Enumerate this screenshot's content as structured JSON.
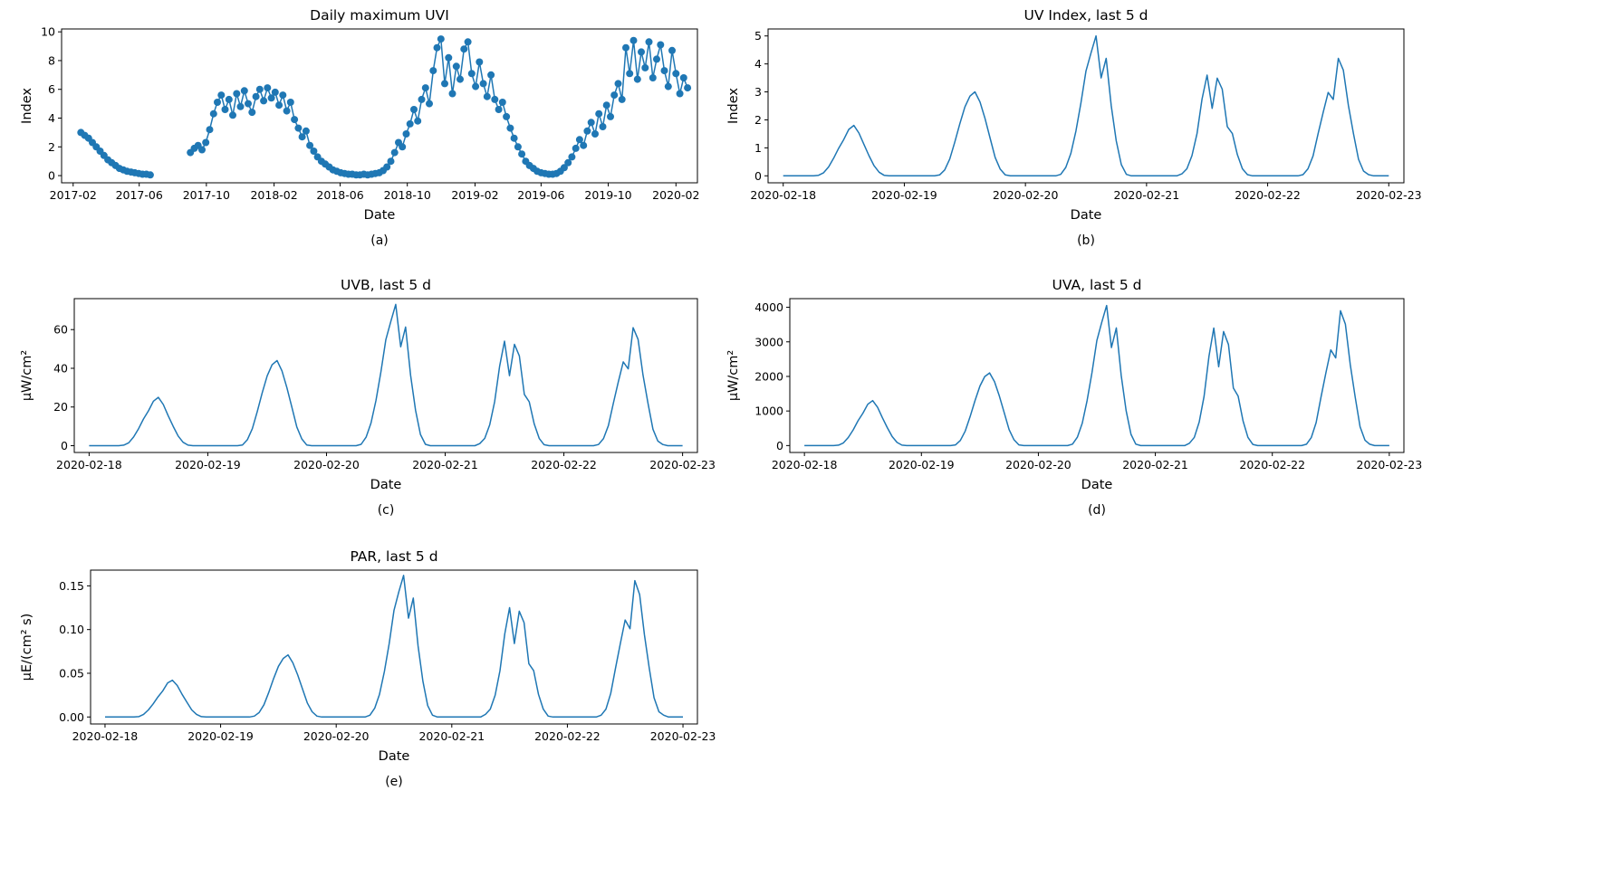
{
  "style": {
    "line_color": "#1f77b4",
    "axis_color": "#000000",
    "text_color": "#000000",
    "background": "#ffffff"
  },
  "chart_data": [
    {
      "id": "a",
      "type": "scatter",
      "title": "Daily maximum UVI",
      "xlabel": "Date",
      "ylabel": "Index",
      "caption": "(a)",
      "x_unit": "days since 2017-01-01",
      "xlim": [
        10,
        1165
      ],
      "ylim": [
        -0.5,
        10.2
      ],
      "grid": false,
      "legend": "none",
      "marker": true,
      "xticks": [
        {
          "v": 31,
          "label": "2017-02"
        },
        {
          "v": 151,
          "label": "2017-06"
        },
        {
          "v": 273,
          "label": "2017-10"
        },
        {
          "v": 396,
          "label": "2018-02"
        },
        {
          "v": 516,
          "label": "2018-06"
        },
        {
          "v": 638,
          "label": "2018-10"
        },
        {
          "v": 761,
          "label": "2019-02"
        },
        {
          "v": 881,
          "label": "2019-06"
        },
        {
          "v": 1003,
          "label": "2019-10"
        },
        {
          "v": 1126,
          "label": "2020-02"
        }
      ],
      "yticks": [
        {
          "v": 0,
          "label": "0"
        },
        {
          "v": 2,
          "label": "2"
        },
        {
          "v": 4,
          "label": "4"
        },
        {
          "v": 6,
          "label": "6"
        },
        {
          "v": 8,
          "label": "8"
        },
        {
          "v": 10,
          "label": "10"
        }
      ],
      "layout": {
        "margin_left": 48
      },
      "segments": [
        {
          "x": [
            45,
            52,
            59,
            66,
            73,
            80,
            87,
            94,
            101,
            108,
            115,
            122,
            129,
            136,
            143,
            150,
            157,
            164,
            171
          ],
          "y": [
            3.0,
            2.8,
            2.6,
            2.3,
            2.0,
            1.7,
            1.4,
            1.1,
            0.9,
            0.7,
            0.5,
            0.4,
            0.3,
            0.25,
            0.2,
            0.15,
            0.1,
            0.1,
            0.05
          ]
        },
        {
          "x_start": 244,
          "x_step": 7,
          "y": [
            1.6,
            1.9,
            2.1,
            1.8,
            2.3,
            3.2,
            4.3,
            5.1,
            5.6,
            4.6,
            5.3,
            4.2,
            5.7,
            4.8,
            5.9,
            5.0,
            4.4,
            5.5,
            6.0,
            5.2,
            6.1,
            5.4,
            5.8,
            4.9,
            5.6,
            4.5,
            5.1,
            3.9,
            3.3,
            2.7,
            3.1,
            2.1,
            1.7,
            1.3,
            1.0,
            0.8,
            0.6,
            0.4,
            0.3,
            0.2,
            0.15,
            0.1,
            0.1,
            0.05,
            0.05,
            0.1,
            0.05,
            0.1,
            0.15,
            0.2,
            0.35,
            0.6,
            1.0,
            1.6,
            2.3,
            2.0,
            2.9,
            3.6,
            4.6,
            3.8,
            5.3,
            6.1,
            5.0,
            7.3,
            8.9,
            9.5,
            6.4,
            8.2,
            5.7,
            7.6,
            6.7,
            8.8,
            9.3,
            7.1,
            6.2,
            7.9,
            6.4,
            5.5,
            7.0,
            5.3,
            4.6,
            5.1,
            4.1,
            3.3,
            2.6,
            2.0,
            1.5,
            1.0,
            0.7,
            0.5,
            0.3,
            0.2,
            0.15,
            0.1,
            0.1,
            0.15,
            0.3,
            0.55,
            0.9,
            1.3,
            1.9,
            2.5,
            2.1,
            3.1,
            3.7,
            2.9,
            4.3,
            3.4,
            4.9,
            4.1,
            5.6,
            6.4,
            5.3,
            8.9,
            7.1,
            9.4,
            6.7,
            8.6,
            7.5,
            9.3,
            6.8,
            8.1,
            9.1,
            7.3,
            6.2,
            8.7,
            7.1,
            5.7,
            6.8,
            6.1
          ]
        }
      ]
    },
    {
      "id": "b",
      "type": "line",
      "title": "UV Index, last 5 d",
      "xlabel": "Date",
      "ylabel": "Index",
      "caption": "(b)",
      "x_unit": "hours since 2020-02-18 00:00",
      "xlim": [
        -3,
        123
      ],
      "ylim": [
        -0.25,
        5.25
      ],
      "grid": false,
      "legend": "none",
      "marker": false,
      "xticks": [
        {
          "v": 0,
          "label": "2020-02-18"
        },
        {
          "v": 24,
          "label": "2020-02-19"
        },
        {
          "v": 48,
          "label": "2020-02-20"
        },
        {
          "v": 72,
          "label": "2020-02-21"
        },
        {
          "v": 96,
          "label": "2020-02-22"
        },
        {
          "v": 120,
          "label": "2020-02-23"
        }
      ],
      "yticks": [
        {
          "v": 0,
          "label": "0"
        },
        {
          "v": 1,
          "label": "1"
        },
        {
          "v": 2,
          "label": "2"
        },
        {
          "v": 3,
          "label": "3"
        },
        {
          "v": 4,
          "label": "4"
        },
        {
          "v": 5,
          "label": "5"
        }
      ],
      "layout": {
        "margin_left": 48
      },
      "daily_peaks": [
        1.8,
        3.0,
        5.0,
        3.6,
        4.2
      ],
      "segments": [
        {
          "x_start": 0,
          "x_step": 1,
          "y": [
            0,
            0,
            0,
            0,
            0,
            0,
            0,
            0.02,
            0.11,
            0.32,
            0.63,
            0.99,
            1.3,
            1.66,
            1.8,
            1.53,
            1.12,
            0.72,
            0.36,
            0.13,
            0.02,
            0,
            0,
            0,
            0,
            0,
            0,
            0,
            0,
            0,
            0,
            0.03,
            0.21,
            0.6,
            1.2,
            1.86,
            2.46,
            2.85,
            3.0,
            2.64,
            2.04,
            1.35,
            0.66,
            0.24,
            0.03,
            0,
            0,
            0,
            0,
            0,
            0,
            0,
            0,
            0,
            0,
            0.05,
            0.3,
            0.8,
            1.6,
            2.6,
            3.75,
            4.4,
            5.0,
            3.5,
            4.2,
            2.5,
            1.25,
            0.4,
            0.05,
            0,
            0,
            0,
            0,
            0,
            0,
            0,
            0,
            0,
            0,
            0.07,
            0.25,
            0.72,
            1.51,
            2.74,
            3.6,
            2.41,
            3.49,
            3.1,
            1.76,
            1.51,
            0.76,
            0.25,
            0.04,
            0,
            0,
            0,
            0,
            0,
            0,
            0,
            0,
            0,
            0,
            0.04,
            0.25,
            0.71,
            1.51,
            2.27,
            2.98,
            2.73,
            4.2,
            3.78,
            2.52,
            1.51,
            0.59,
            0.17,
            0.04,
            0,
            0,
            0,
            0
          ]
        }
      ]
    },
    {
      "id": "c",
      "type": "line",
      "title": "UVB, last 5 d",
      "xlabel": "Date",
      "ylabel": "µW/cm²",
      "caption": "(c)",
      "x_unit": "hours since 2020-02-18 00:00",
      "xlim": [
        -3,
        123
      ],
      "ylim": [
        -3.5,
        76
      ],
      "grid": false,
      "legend": "none",
      "marker": false,
      "xticks": [
        {
          "v": 0,
          "label": "2020-02-18"
        },
        {
          "v": 24,
          "label": "2020-02-19"
        },
        {
          "v": 48,
          "label": "2020-02-20"
        },
        {
          "v": 72,
          "label": "2020-02-21"
        },
        {
          "v": 96,
          "label": "2020-02-22"
        },
        {
          "v": 120,
          "label": "2020-02-23"
        }
      ],
      "yticks": [
        {
          "v": 0,
          "label": "0"
        },
        {
          "v": 20,
          "label": "20"
        },
        {
          "v": 40,
          "label": "40"
        },
        {
          "v": 60,
          "label": "60"
        }
      ],
      "layout": {
        "margin_left": 62
      },
      "daily_peaks": [
        25,
        44,
        73,
        54,
        61
      ],
      "segments": [
        {
          "x_start": 0,
          "x_step": 1,
          "y": [
            0,
            0,
            0,
            0,
            0,
            0,
            0,
            0.3,
            1.5,
            4.5,
            8.8,
            13.8,
            18,
            23,
            25,
            21.3,
            15.5,
            10,
            5,
            1.8,
            0.3,
            0,
            0,
            0,
            0,
            0,
            0,
            0,
            0,
            0,
            0,
            0.4,
            3.1,
            8.8,
            17.6,
            27.3,
            36.1,
            41.8,
            44,
            38.7,
            29.9,
            19.8,
            9.7,
            3.5,
            0.4,
            0,
            0,
            0,
            0,
            0,
            0,
            0,
            0,
            0,
            0,
            0.7,
            4.4,
            11.7,
            23.4,
            38,
            54.8,
            64.2,
            73,
            51.1,
            61.3,
            36.5,
            18.3,
            5.8,
            0.7,
            0,
            0,
            0,
            0,
            0,
            0,
            0,
            0,
            0,
            0,
            1.1,
            3.8,
            10.8,
            22.7,
            41,
            54,
            36.2,
            52.4,
            46.4,
            26.5,
            22.7,
            11.3,
            3.8,
            0.5,
            0,
            0,
            0,
            0,
            0,
            0,
            0,
            0,
            0,
            0,
            0.6,
            3.7,
            10.4,
            22,
            32.9,
            43.3,
            39.7,
            61,
            54.9,
            36.6,
            22,
            8.5,
            2.4,
            0.6,
            0,
            0,
            0,
            0
          ]
        }
      ]
    },
    {
      "id": "d",
      "type": "line",
      "title": "UVA, last 5 d",
      "xlabel": "Date",
      "ylabel": "µW/cm²",
      "caption": "(d)",
      "x_unit": "hours since 2020-02-18 00:00",
      "xlim": [
        -3,
        123
      ],
      "ylim": [
        -200,
        4250
      ],
      "grid": false,
      "legend": "none",
      "marker": false,
      "xticks": [
        {
          "v": 0,
          "label": "2020-02-18"
        },
        {
          "v": 24,
          "label": "2020-02-19"
        },
        {
          "v": 48,
          "label": "2020-02-20"
        },
        {
          "v": 72,
          "label": "2020-02-21"
        },
        {
          "v": 96,
          "label": "2020-02-22"
        },
        {
          "v": 120,
          "label": "2020-02-23"
        }
      ],
      "yticks": [
        {
          "v": 0,
          "label": "0"
        },
        {
          "v": 1000,
          "label": "1000"
        },
        {
          "v": 2000,
          "label": "2000"
        },
        {
          "v": 3000,
          "label": "3000"
        },
        {
          "v": 4000,
          "label": "4000"
        }
      ],
      "layout": {
        "margin_left": 72
      },
      "daily_peaks": [
        1300,
        2100,
        4050,
        3400,
        3900
      ],
      "segments": [
        {
          "x_start": 0,
          "x_step": 1,
          "y": [
            0,
            0,
            0,
            0,
            0,
            0,
            0,
            13,
            78,
            234,
            455,
            715,
            936,
            1196,
            1300,
            1105,
            806,
            520,
            260,
            91,
            13,
            0,
            0,
            0,
            0,
            0,
            0,
            0,
            0,
            0,
            0,
            21,
            147,
            420,
            840,
            1302,
            1722,
            1995,
            2100,
            1848,
            1428,
            945,
            462,
            168,
            21,
            0,
            0,
            0,
            0,
            0,
            0,
            0,
            0,
            0,
            0,
            41,
            243,
            648,
            1296,
            2106,
            3038,
            3564,
            4050,
            2835,
            3402,
            2025,
            1013,
            324,
            41,
            0,
            0,
            0,
            0,
            0,
            0,
            0,
            0,
            0,
            0,
            68,
            238,
            680,
            1428,
            2584,
            3400,
            2278,
            3298,
            2924,
            1666,
            1428,
            714,
            238,
            34,
            0,
            0,
            0,
            0,
            0,
            0,
            0,
            0,
            0,
            0,
            39,
            234,
            663,
            1404,
            2106,
            2769,
            2535,
            3900,
            3510,
            2340,
            1404,
            546,
            156,
            39,
            0,
            0,
            0,
            0
          ]
        }
      ]
    },
    {
      "id": "e",
      "type": "line",
      "title": "PAR, last 5 d",
      "xlabel": "Date",
      "ylabel": "µE/(cm² s)",
      "caption": "(e)",
      "x_unit": "hours since 2020-02-18 00:00",
      "xlim": [
        -3,
        123
      ],
      "ylim": [
        -0.008,
        0.168
      ],
      "grid": false,
      "legend": "none",
      "marker": false,
      "xticks": [
        {
          "v": 0,
          "label": "2020-02-18"
        },
        {
          "v": 24,
          "label": "2020-02-19"
        },
        {
          "v": 48,
          "label": "2020-02-20"
        },
        {
          "v": 72,
          "label": "2020-02-21"
        },
        {
          "v": 96,
          "label": "2020-02-22"
        },
        {
          "v": 120,
          "label": "2020-02-23"
        }
      ],
      "yticks": [
        {
          "v": 0,
          "label": "0.00"
        },
        {
          "v": 0.05,
          "label": "0.05"
        },
        {
          "v": 0.1,
          "label": "0.10"
        },
        {
          "v": 0.15,
          "label": "0.15"
        }
      ],
      "layout": {
        "margin_left": 80
      },
      "daily_peaks": [
        0.042,
        0.071,
        0.162,
        0.125,
        0.156
      ],
      "segments": [
        {
          "x_start": 0,
          "x_step": 1,
          "y": [
            0,
            0,
            0,
            0,
            0,
            0,
            0,
            0.0004,
            0.003,
            0.008,
            0.015,
            0.023,
            0.03,
            0.039,
            0.042,
            0.036,
            0.026,
            0.017,
            0.008,
            0.003,
            0.0004,
            0,
            0,
            0,
            0,
            0,
            0,
            0,
            0,
            0,
            0,
            0.001,
            0.005,
            0.014,
            0.028,
            0.044,
            0.058,
            0.067,
            0.071,
            0.062,
            0.048,
            0.032,
            0.016,
            0.006,
            0.001,
            0,
            0,
            0,
            0,
            0,
            0,
            0,
            0,
            0,
            0,
            0.002,
            0.01,
            0.026,
            0.052,
            0.084,
            0.122,
            0.143,
            0.162,
            0.113,
            0.136,
            0.081,
            0.041,
            0.013,
            0.002,
            0,
            0,
            0,
            0,
            0,
            0,
            0,
            0,
            0,
            0,
            0.003,
            0.009,
            0.025,
            0.053,
            0.095,
            0.125,
            0.084,
            0.121,
            0.108,
            0.061,
            0.053,
            0.026,
            0.009,
            0.001,
            0,
            0,
            0,
            0,
            0,
            0,
            0,
            0,
            0,
            0,
            0.002,
            0.009,
            0.027,
            0.056,
            0.084,
            0.111,
            0.101,
            0.156,
            0.14,
            0.094,
            0.056,
            0.022,
            0.006,
            0.002,
            0,
            0,
            0,
            0
          ]
        }
      ]
    }
  ]
}
